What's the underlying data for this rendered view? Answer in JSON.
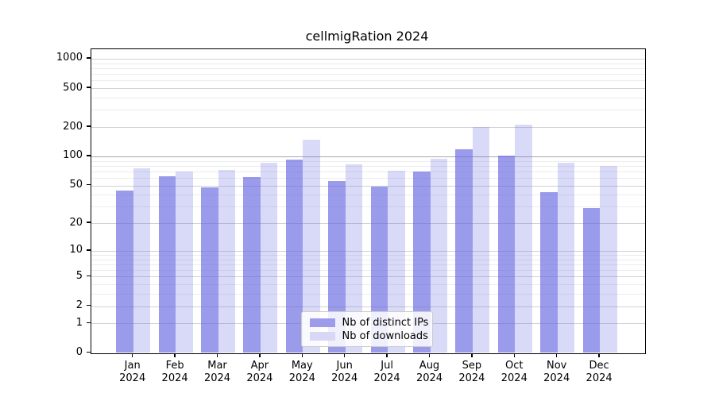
{
  "chart_data": {
    "type": "bar",
    "title": "cellmigRation 2024",
    "categories": [
      "Jan 2024",
      "Feb 2024",
      "Mar 2024",
      "Apr 2024",
      "May 2024",
      "Jun 2024",
      "Jul 2024",
      "Aug 2024",
      "Sep 2024",
      "Oct 2024",
      "Nov 2024",
      "Dec 2024"
    ],
    "series": [
      {
        "name": "Nb of distinct IPs",
        "values": [
          44,
          62,
          48,
          61,
          92,
          56,
          49,
          70,
          118,
          101,
          43,
          29
        ],
        "color_rgba": "rgba(102,102,226,0.65)",
        "swatch_color": "#9c9cea"
      },
      {
        "name": "Nb of downloads",
        "values": [
          76,
          70,
          73,
          86,
          147,
          83,
          71,
          95,
          200,
          210,
          86,
          79
        ],
        "color_rgba": "rgba(102,102,226,0.25)",
        "swatch_color": "#d8d8f6"
      }
    ],
    "y_axis": {
      "scale": "log10(1+x)",
      "ticks": [
        0,
        1,
        2,
        5,
        10,
        20,
        50,
        100,
        200,
        500,
        1000
      ],
      "minor_ticks": [
        3,
        4,
        6,
        7,
        8,
        9,
        30,
        40,
        60,
        70,
        80,
        90,
        300,
        400,
        600,
        700,
        800,
        900
      ],
      "ylim": [
        0,
        1270
      ]
    },
    "legend_position": "lower center",
    "grid": true
  },
  "colors": {
    "grid_minor": "#ececec",
    "grid_major": "#d2d2d2",
    "grid_emphasis": "#a8a8a8",
    "emphasized_gridline_value": 100,
    "axis": "#000000",
    "background": "#ffffff"
  }
}
